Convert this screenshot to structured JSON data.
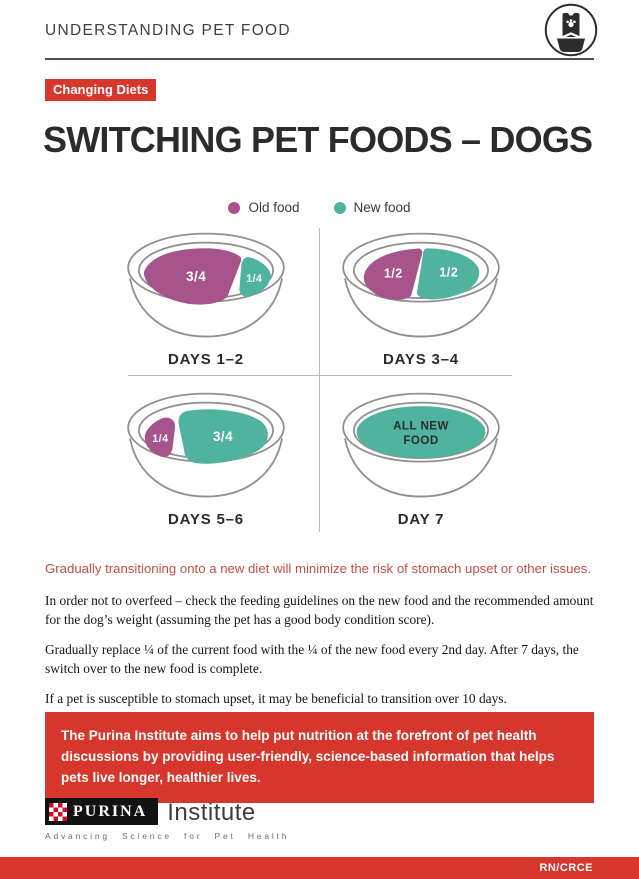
{
  "header": {
    "title": "UNDERSTANDING PET FOOD",
    "icon": "pet-food-bag-and-bowl-icon"
  },
  "badge": "Changing Diets",
  "title": "SWITCHING PET FOODS – DOGS",
  "legend": [
    {
      "key": "old",
      "label": "Old food",
      "color": "#a7548d"
    },
    {
      "key": "new",
      "label": "New food",
      "color": "#4fb3a0"
    }
  ],
  "colors": {
    "old": "#a7548d",
    "new": "#4fb3a0",
    "accent_red": "#d6362b",
    "highlight_red": "#bf4f44"
  },
  "bowls": [
    {
      "label": "DAYS 1–2",
      "segments": [
        {
          "type": "old",
          "text": "3/4",
          "shape": "left-three-quarters"
        },
        {
          "type": "new",
          "text": "1/4",
          "shape": "right-quarter"
        }
      ]
    },
    {
      "label": "DAYS 3–4",
      "segments": [
        {
          "type": "old",
          "text": "1/2",
          "shape": "left-half"
        },
        {
          "type": "new",
          "text": "1/2",
          "shape": "right-half"
        }
      ]
    },
    {
      "label": "DAYS 5–6",
      "segments": [
        {
          "type": "old",
          "text": "1/4",
          "shape": "left-quarter"
        },
        {
          "type": "new",
          "text": "3/4",
          "shape": "right-three-quarters"
        }
      ]
    },
    {
      "label": "DAY 7",
      "segments": [
        {
          "type": "new",
          "text": "ALL NEW\nFOOD",
          "shape": "full"
        }
      ]
    }
  ],
  "highlight": "Gradually transitioning onto a new diet will minimize the risk of stomach upset or other issues.",
  "paragraphs": [
    "In order not to overfeed – check the feeding guidelines on the new food and the recommended amount for the dog’s weight (assuming the pet has a good body condition score).",
    "Gradually replace ¼ of the current food with the ¼ of the new food every 2nd day. After 7 days, the switch over to the new food is complete.",
    "If a pet is susceptible to stomach upset, it may be beneficial to transition over 10 days."
  ],
  "callout": "The Purina Institute aims to help put nutrition at the forefront of pet health discussions by providing user-friendly, science-based information that helps pets live longer, healthier lives.",
  "footer": {
    "brand": "PURINA",
    "brand_suffix": "Institute",
    "tagline": "Advancing Science for Pet Health",
    "code": "RN/CRCE"
  }
}
